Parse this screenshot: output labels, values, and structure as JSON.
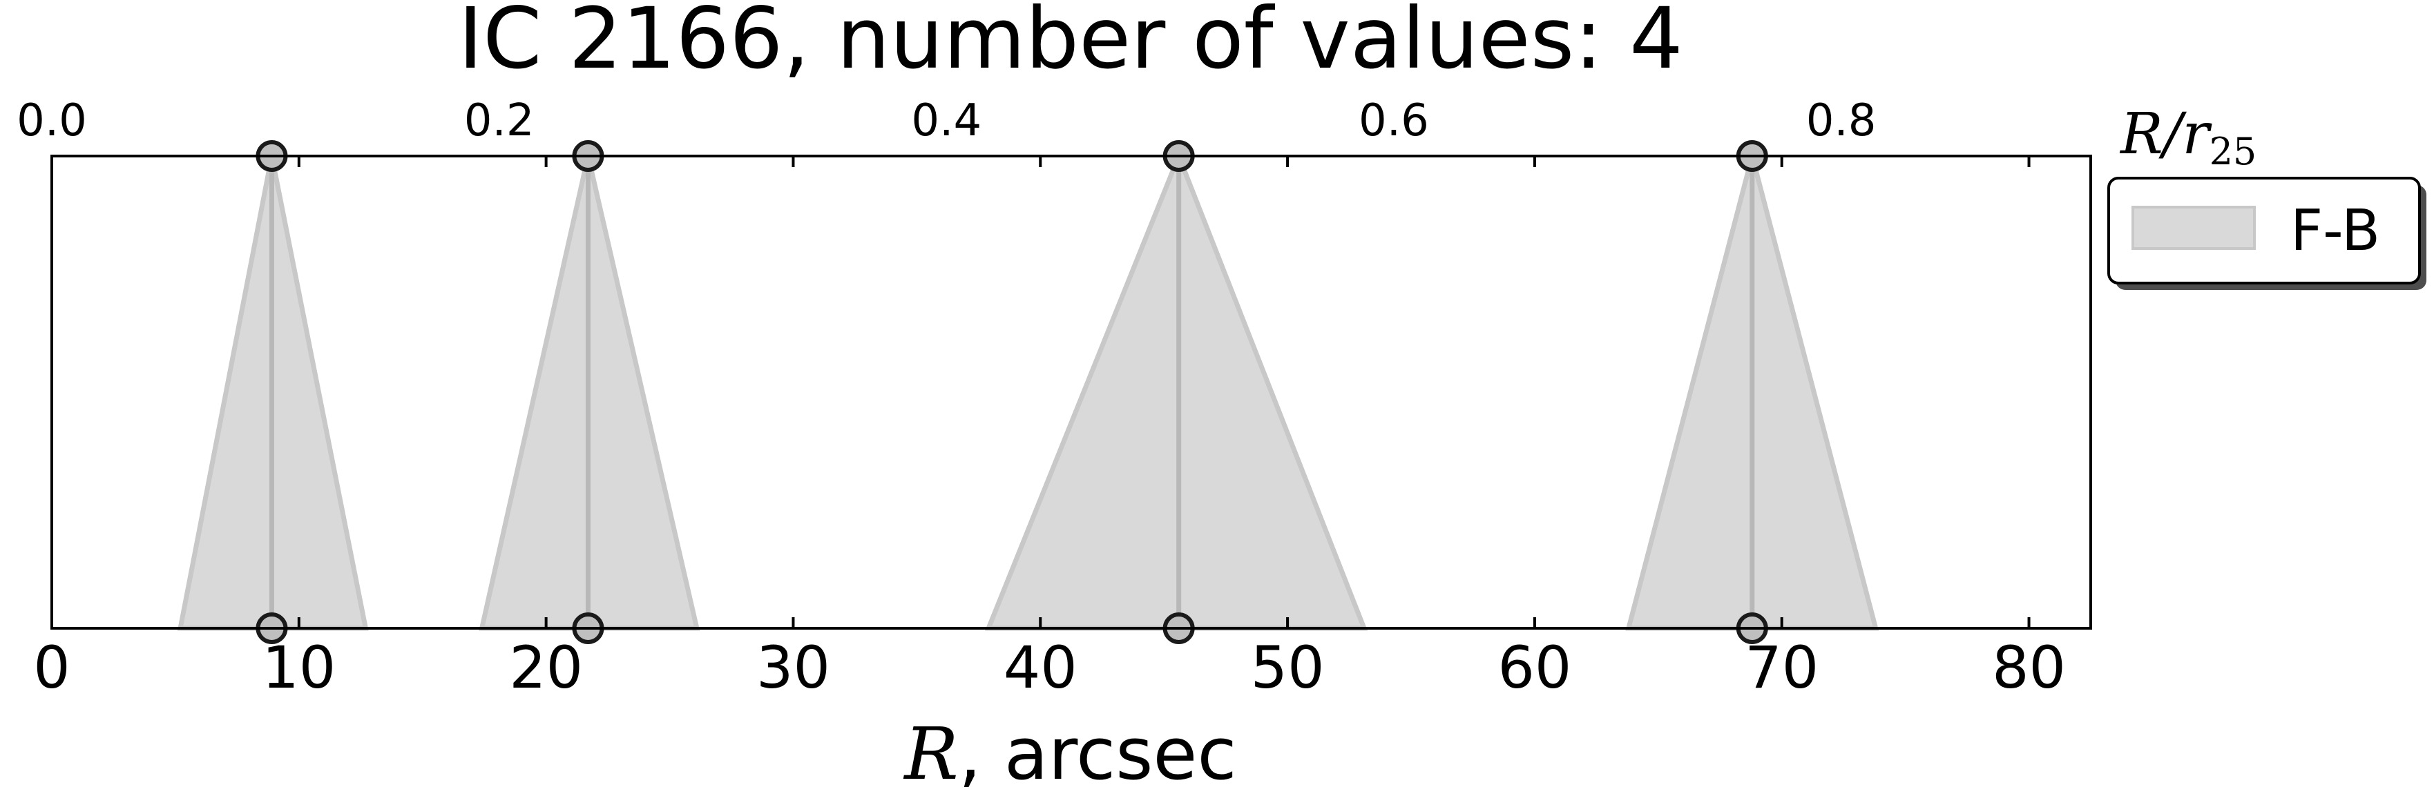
{
  "chart_data": {
    "type": "area",
    "title": "IC 2166, number of values: 4",
    "xlabel_var": "R",
    "xlabel_unit": ", arcsec",
    "top_xlabel_var": "R/r",
    "top_xlabel_sub": "25",
    "xlim": [
      0,
      82.5
    ],
    "xticks": [
      "0",
      "10",
      "20",
      "30",
      "40",
      "50",
      "60",
      "70",
      "80"
    ],
    "top_xticks": [
      "0.0",
      "0.2",
      "0.4",
      "0.6",
      "0.8"
    ],
    "top_xtick_positions": [
      0,
      18.1,
      36.2,
      54.3,
      72.4
    ],
    "grid": false,
    "legend": {
      "placement": "outside-top-right",
      "label": "F-B"
    },
    "series": [
      {
        "name": "F-B",
        "items": [
          {
            "x": 8.9,
            "base_min": 5.2,
            "base_max": 12.7
          },
          {
            "x": 21.7,
            "base_min": 17.4,
            "base_max": 26.1
          },
          {
            "x": 45.6,
            "base_min": 37.9,
            "base_max": 53.1
          },
          {
            "x": 68.8,
            "base_min": 63.8,
            "base_max": 73.8
          }
        ]
      }
    ],
    "colors": {
      "fill": "#d9d9d9",
      "edge": "#c8c8c8",
      "center_line": "#b8b8b8",
      "marker_fill": "#bfbfbf",
      "marker_edge": "#1a1a1a"
    }
  }
}
